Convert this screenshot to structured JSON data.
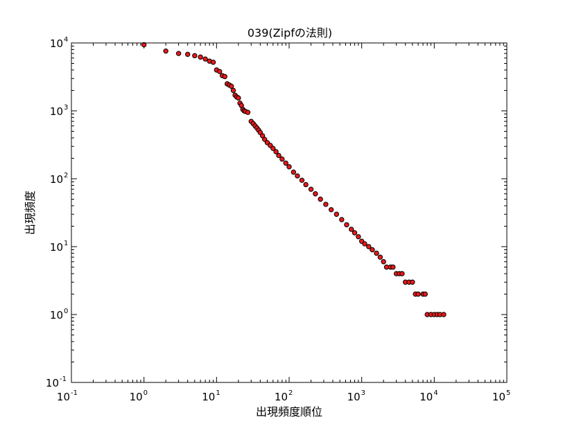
{
  "chart_data": {
    "type": "scatter",
    "title": "039(Zipfの法則)",
    "xlabel": "出現頻度順位",
    "ylabel": "出現頻度",
    "xscale": "log",
    "yscale": "log",
    "xlim": [
      0.1,
      100000
    ],
    "ylim": [
      0.1,
      10000
    ],
    "x_ticks": [
      {
        "base": "10",
        "exp": "-1",
        "value": 0.1
      },
      {
        "base": "10",
        "exp": "0",
        "value": 1
      },
      {
        "base": "10",
        "exp": "1",
        "value": 10
      },
      {
        "base": "10",
        "exp": "2",
        "value": 100
      },
      {
        "base": "10",
        "exp": "3",
        "value": 1000
      },
      {
        "base": "10",
        "exp": "4",
        "value": 10000
      },
      {
        "base": "10",
        "exp": "5",
        "value": 100000
      }
    ],
    "y_ticks": [
      {
        "base": "10",
        "exp": "-1",
        "value": 0.1
      },
      {
        "base": "10",
        "exp": "0",
        "value": 1
      },
      {
        "base": "10",
        "exp": "1",
        "value": 10
      },
      {
        "base": "10",
        "exp": "2",
        "value": 100
      },
      {
        "base": "10",
        "exp": "3",
        "value": 1000
      },
      {
        "base": "10",
        "exp": "4",
        "value": 10000
      }
    ],
    "grid": false,
    "marker_color": "#e8191c",
    "marker_edge_color": "#000000",
    "series": [
      {
        "x": [
          1,
          2,
          3,
          4,
          5,
          6,
          7,
          8,
          9,
          10,
          11,
          12,
          13,
          14,
          15,
          16,
          17,
          18,
          19,
          20,
          21,
          22,
          23,
          24,
          25,
          27,
          30,
          32,
          34,
          36,
          38,
          40,
          43,
          46,
          50,
          55,
          60,
          66,
          72,
          80,
          90,
          100,
          115,
          130,
          150,
          170,
          200,
          230,
          270,
          320,
          380,
          450,
          530,
          620,
          720,
          800,
          900,
          1000,
          1100,
          1250,
          1400,
          1600,
          1800,
          2000,
          2200,
          2500,
          2700,
          3000,
          3300,
          3600,
          4000,
          4500,
          5000,
          5500,
          6000,
          7000,
          7500,
          8000,
          9000,
          10000,
          11000,
          12000,
          13500
        ],
        "y": [
          9400,
          7600,
          7000,
          6800,
          6500,
          6200,
          5800,
          5400,
          5200,
          4000,
          3800,
          3300,
          3200,
          2500,
          2400,
          2300,
          2000,
          1700,
          1600,
          1550,
          1300,
          1200,
          1050,
          1000,
          980,
          950,
          700,
          650,
          600,
          560,
          520,
          480,
          430,
          380,
          340,
          310,
          280,
          250,
          220,
          195,
          170,
          150,
          125,
          110,
          95,
          82,
          70,
          60,
          50,
          42,
          35,
          30,
          25,
          21,
          18,
          16,
          14,
          12,
          11,
          10,
          9,
          8,
          7,
          6,
          5,
          5,
          5,
          4,
          4,
          4,
          3,
          3,
          3,
          2,
          2,
          2,
          2,
          1,
          1,
          1,
          1,
          1,
          1
        ]
      }
    ]
  }
}
